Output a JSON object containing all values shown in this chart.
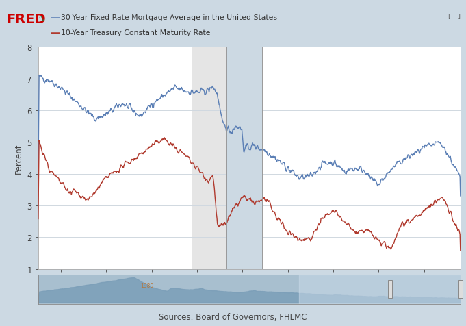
{
  "bg_color": "#ccd9e3",
  "plot_bg_color": "#ffffff",
  "shaded_region_color": "#e5e5e5",
  "title1": "30-Year Fixed Rate Mortgage Average in the United States",
  "title2": "10-Year Treasury Constant Maturity Rate",
  "ylabel": "Percent",
  "source": "Sources: Board of Governors, FHLMC",
  "line1_color": "#5b7fb5",
  "line2_color": "#b03a2e",
  "ylim": [
    1,
    8
  ],
  "yticks": [
    1,
    2,
    3,
    4,
    5,
    6,
    7,
    8
  ],
  "shade_start": 2007.75,
  "shade_end": 2009.3,
  "gap_xmin": 2009.3,
  "gap_xmax": 2010.85,
  "xstart": 2001.0,
  "xend": 2019.6,
  "xtick_years": [
    2002,
    2004,
    2006,
    2008,
    2010,
    2012,
    2014,
    2016,
    2018
  ],
  "nav_xstart": 1971.0,
  "nav_xend": 2019.6
}
